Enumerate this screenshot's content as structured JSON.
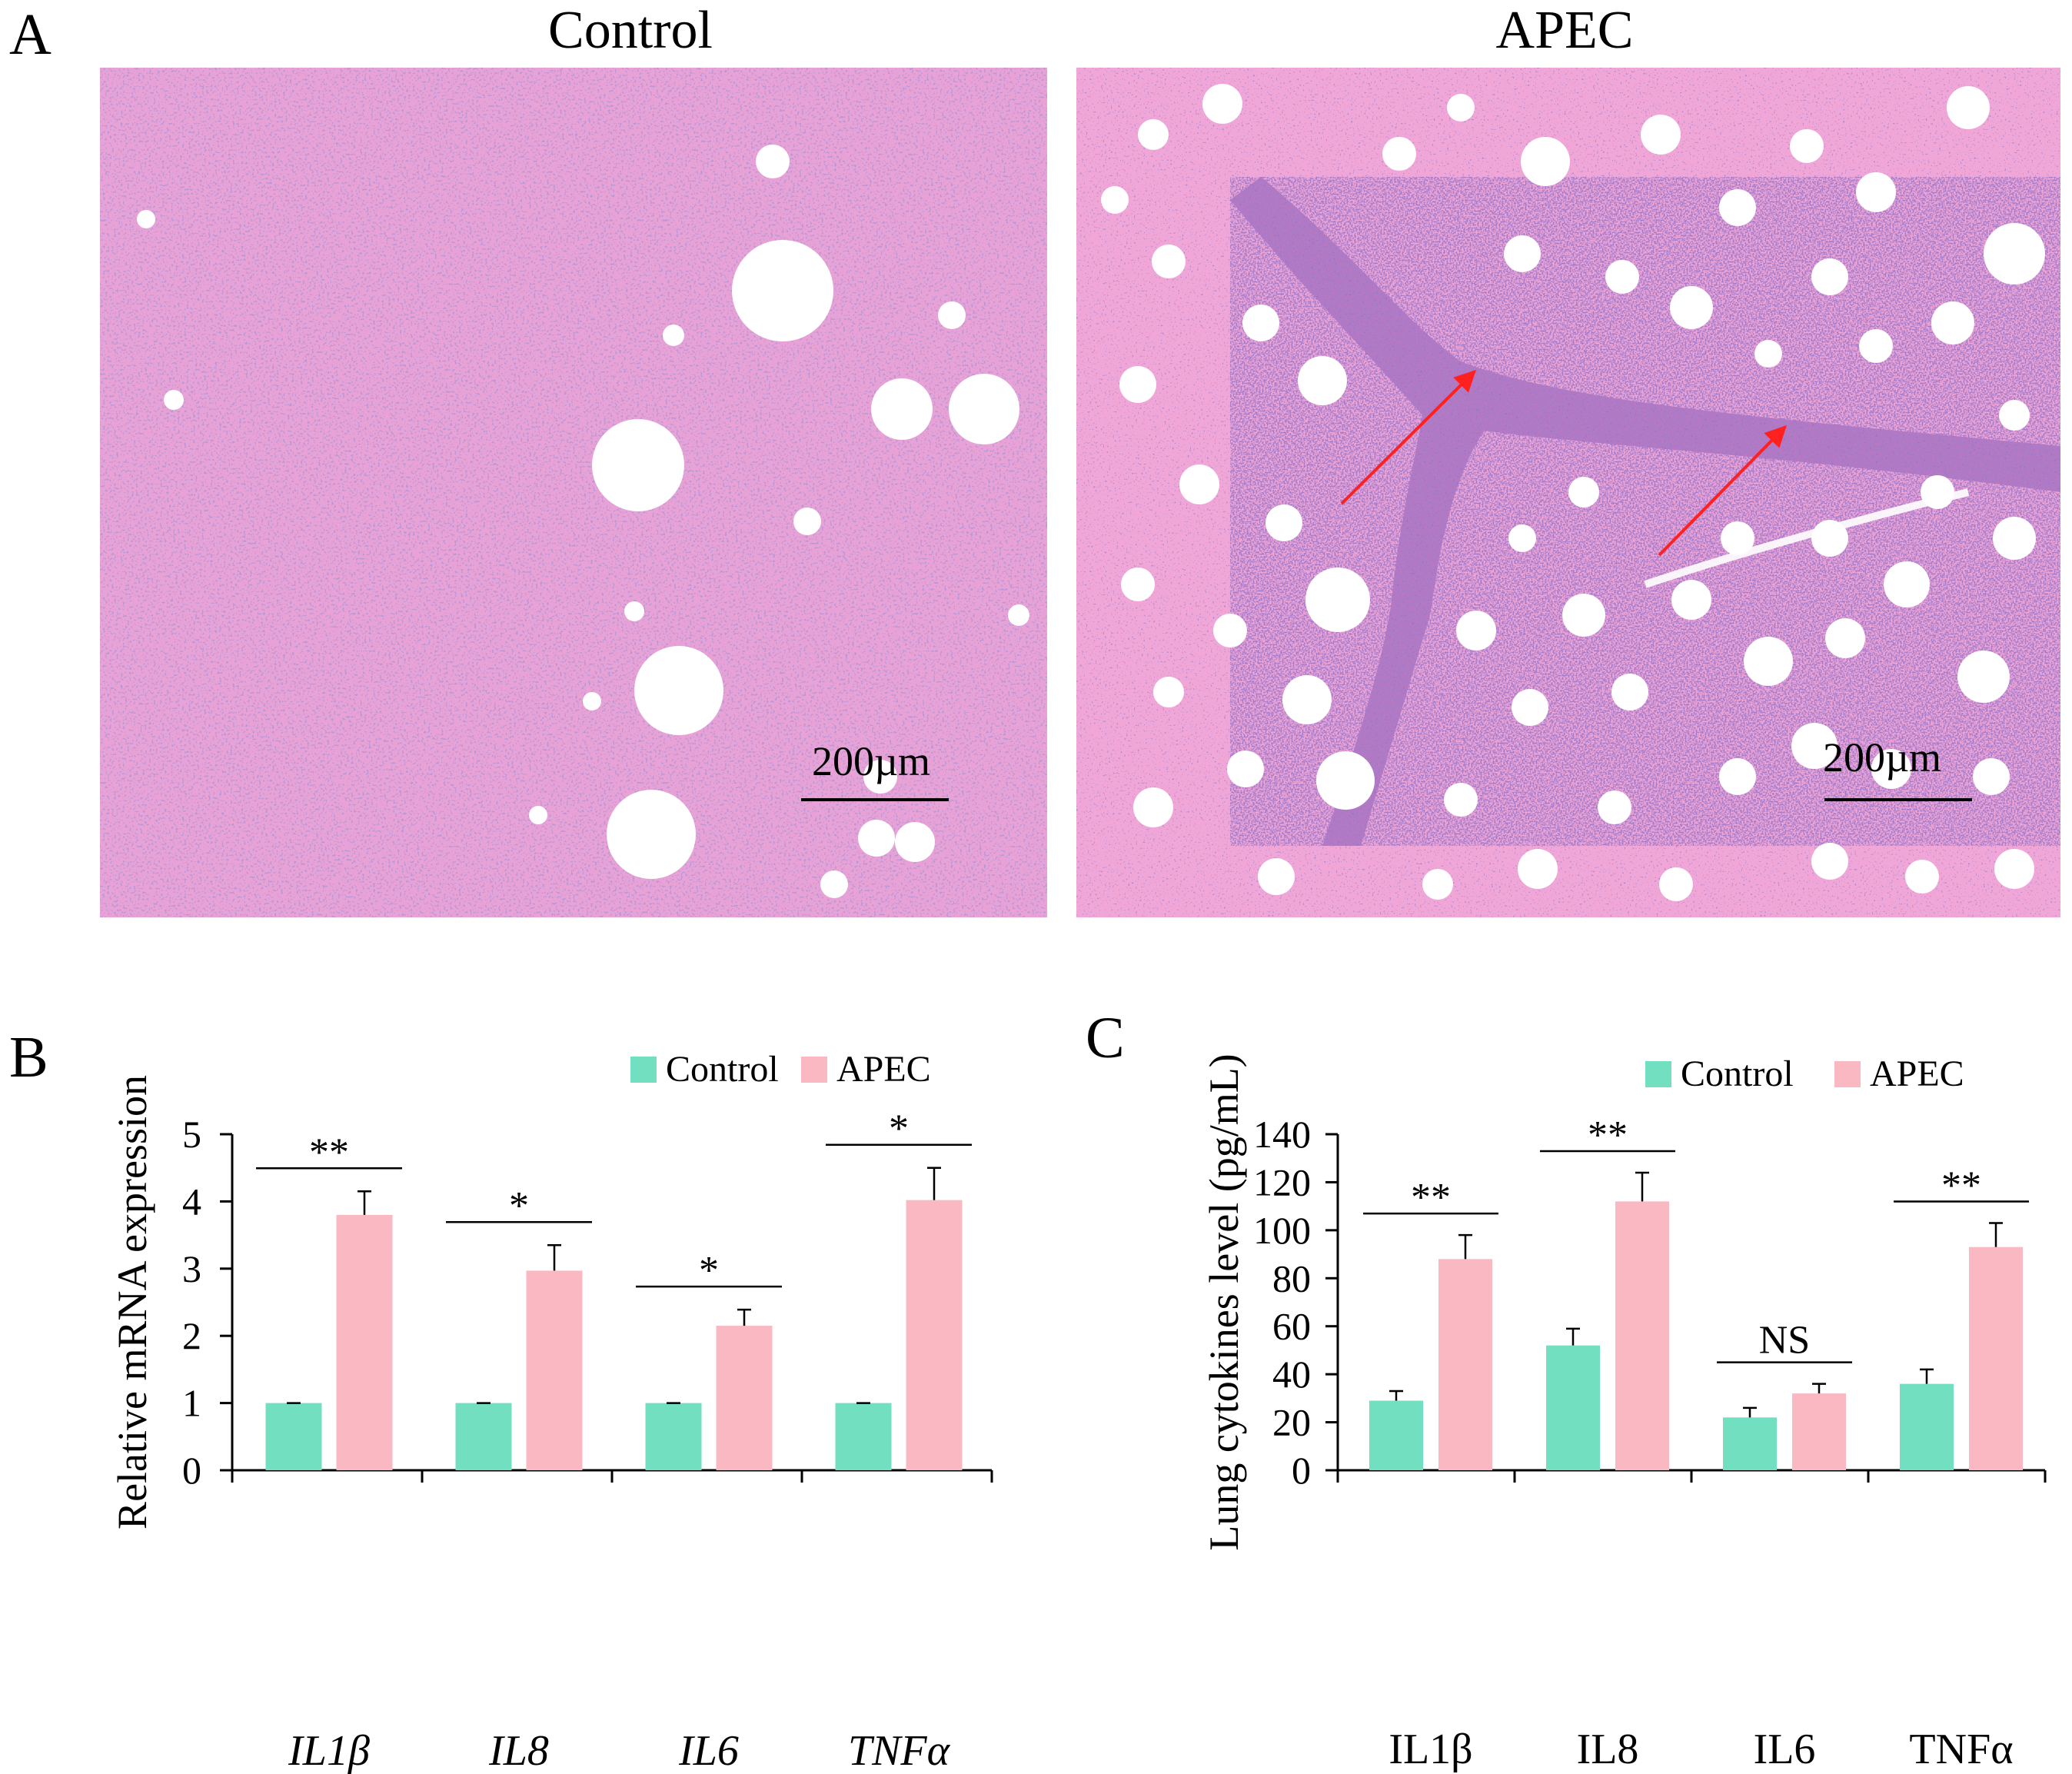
{
  "panels": {
    "a_letter": "A",
    "b_letter": "B",
    "c_letter": "C"
  },
  "histology": {
    "images": [
      {
        "title": "Control",
        "scale_bar": "200µm"
      },
      {
        "title": "APEC",
        "scale_bar": "200µm"
      }
    ],
    "colors": {
      "tissue": "#e69fd4",
      "nuclei": "#7b4fae",
      "vacuole": "#ffffff",
      "arrow": "#ff2020"
    }
  },
  "colors": {
    "control": "#72e0c0",
    "apec": "#fab9c2",
    "axis": "#000000"
  },
  "chart_data": [
    {
      "type": "bar",
      "panel": "B",
      "title": "",
      "ylabel": "Relative mRNA expression",
      "xlabel": "",
      "ylim": [
        0,
        5
      ],
      "yticks": [
        0,
        1,
        2,
        3,
        4,
        5
      ],
      "categories": [
        "IL1β",
        "IL8",
        "IL6",
        "TNFα"
      ],
      "categories_italic": true,
      "legend": [
        "Control",
        "APEC"
      ],
      "legend_position": "top-right",
      "series": [
        {
          "name": "Control",
          "values": [
            1.0,
            1.0,
            1.0,
            1.0
          ],
          "errors": [
            0.0,
            0.0,
            0.0,
            0.0
          ]
        },
        {
          "name": "APEC",
          "values": [
            3.8,
            2.97,
            2.15,
            4.02
          ],
          "errors": [
            0.35,
            0.38,
            0.24,
            0.48
          ]
        }
      ],
      "significance": [
        "**",
        "*",
        "*",
        "*"
      ]
    },
    {
      "type": "bar",
      "panel": "C",
      "title": "",
      "ylabel": "Lung cytokines level (pg/mL)",
      "xlabel": "",
      "ylim": [
        0,
        140
      ],
      "yticks": [
        0,
        20,
        40,
        60,
        80,
        100,
        120,
        140
      ],
      "categories": [
        "IL1β",
        "IL8",
        "IL6",
        "TNFα"
      ],
      "categories_italic": false,
      "legend": [
        "Control",
        "APEC"
      ],
      "legend_position": "top-right",
      "series": [
        {
          "name": "Control",
          "values": [
            29,
            52,
            22,
            36
          ],
          "errors": [
            4,
            7,
            4,
            6
          ]
        },
        {
          "name": "APEC",
          "values": [
            88,
            112,
            32,
            93
          ],
          "errors": [
            10,
            12,
            4,
            10
          ]
        }
      ],
      "significance": [
        "**",
        "**",
        "NS",
        "**"
      ]
    }
  ]
}
